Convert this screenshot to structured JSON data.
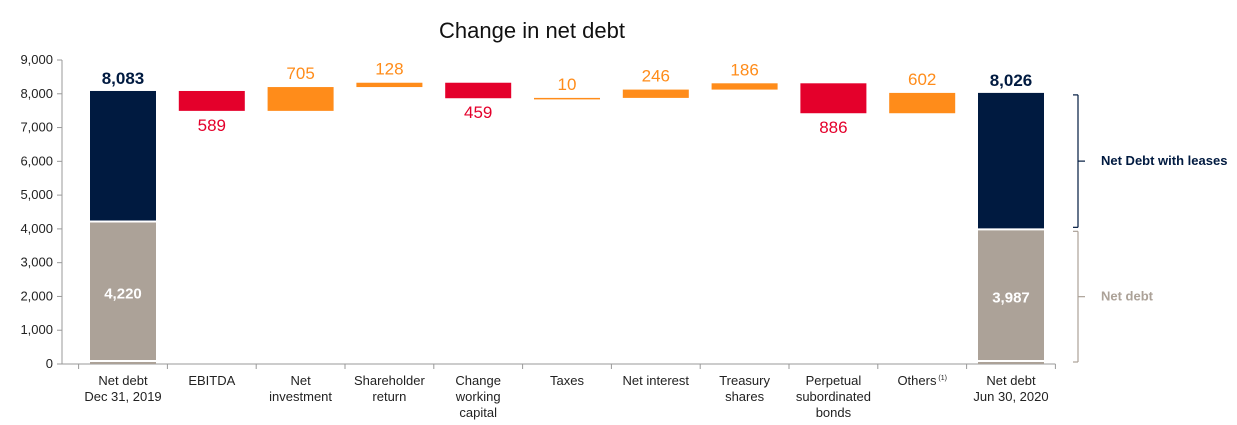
{
  "chart_data": {
    "type": "bar",
    "subtype": "waterfall",
    "title": "Change in net debt",
    "ylim": [
      0,
      9000
    ],
    "yticks": [
      "0",
      "1,000",
      "2,000",
      "3,000",
      "4,000",
      "5,000",
      "6,000",
      "7,000",
      "8,000",
      "9,000"
    ],
    "grid": false,
    "colors": {
      "net_debt": "#ACA298",
      "leases": "#001A40",
      "decrease": "#E4002B",
      "increase": "#FF8C1A",
      "axis": "#999999"
    },
    "steps": [
      {
        "label_lines": [
          "Net debt",
          "Dec 31, 2019"
        ],
        "kind": "total",
        "net_debt": 4220,
        "total": 8083,
        "net_debt_label": "4,220",
        "total_label": "8,083"
      },
      {
        "label_lines": [
          "EBITDA"
        ],
        "kind": "decrease",
        "start": 8083,
        "end": 7494,
        "value_label": "589"
      },
      {
        "label_lines": [
          "Net",
          "investment"
        ],
        "kind": "increase",
        "start": 7494,
        "end": 8199,
        "value_label": "705"
      },
      {
        "label_lines": [
          "Shareholder",
          "return"
        ],
        "kind": "increase",
        "start": 8199,
        "end": 8327,
        "value_label": "128"
      },
      {
        "label_lines": [
          "Change",
          "working",
          "capital"
        ],
        "kind": "decrease",
        "start": 8327,
        "end": 7868,
        "value_label": "459"
      },
      {
        "label_lines": [
          "Taxes"
        ],
        "kind": "increase",
        "start": 7868,
        "end": 7878,
        "value_label": "10"
      },
      {
        "label_lines": [
          "Net interest"
        ],
        "kind": "increase",
        "start": 7878,
        "end": 8124,
        "value_label": "246"
      },
      {
        "label_lines": [
          "Treasury",
          "shares"
        ],
        "kind": "increase",
        "start": 8124,
        "end": 8310,
        "value_label": "186"
      },
      {
        "label_lines": [
          "Perpetual",
          "subordinated",
          "bonds"
        ],
        "kind": "decrease",
        "start": 8310,
        "end": 7424,
        "value_label": "886"
      },
      {
        "label_lines": [
          "Others"
        ],
        "superscript": "(1)",
        "kind": "increase",
        "start": 7424,
        "end": 8026,
        "value_label": "602"
      },
      {
        "label_lines": [
          "Net debt",
          "Jun 30, 2020"
        ],
        "kind": "total",
        "net_debt": 3987,
        "total": 8026,
        "net_debt_label": "3,987",
        "total_label": "8,026"
      }
    ],
    "brackets": [
      {
        "label": "Net Debt with leases",
        "from": 3987,
        "to": 8026,
        "color": "#001A40"
      },
      {
        "label": "Net debt",
        "from": 0,
        "to": 3987,
        "color": "#ACA298"
      }
    ]
  }
}
